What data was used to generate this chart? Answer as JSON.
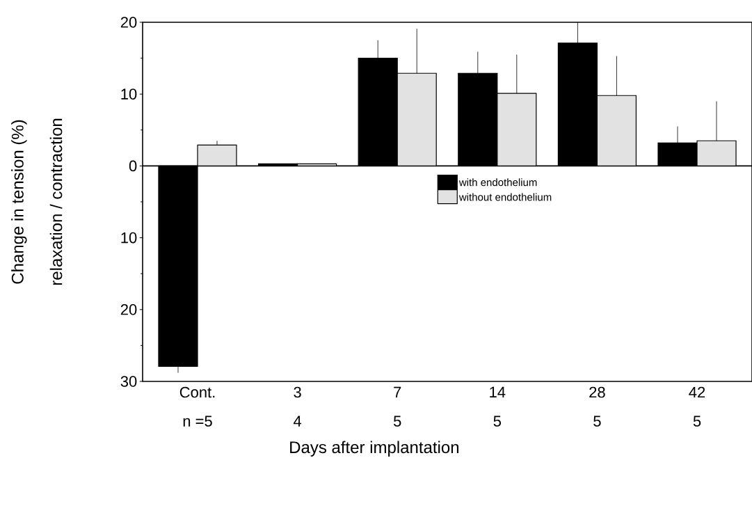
{
  "chart_data": {
    "type": "bar",
    "categories": [
      "Cont.",
      "3",
      "7",
      "14",
      "28",
      "42"
    ],
    "xlabel": "Days after implantation",
    "ylabel": "relaxation / contraction",
    "ylim": [
      -30,
      20
    ],
    "yticks": [
      {
        "value": -30,
        "label": "30"
      },
      {
        "value": -20,
        "label": "20"
      },
      {
        "value": -10,
        "label": "10"
      },
      0,
      10,
      20
    ],
    "series": [
      {
        "name": "with endothelium",
        "color": "#000000",
        "values": [
          -27.9,
          0.3,
          15.0,
          12.9,
          17.1,
          3.2
        ],
        "errors": [
          [
            -28.8,
            -27.9
          ],
          null,
          [
            15.0,
            17.5
          ],
          [
            12.9,
            15.9
          ],
          [
            17.1,
            20
          ],
          [
            3.2,
            5.5
          ]
        ]
      },
      {
        "name": "without endothelium",
        "color": "#e2e2e2",
        "values": [
          2.9,
          0.3,
          12.9,
          10.1,
          9.8,
          3.5
        ],
        "errors": [
          [
            2.9,
            3.5
          ],
          null,
          [
            12.9,
            19.1
          ],
          [
            10.1,
            15.5
          ],
          [
            9.8,
            15.3
          ],
          [
            3.5,
            9.0
          ]
        ]
      }
    ],
    "annotations": [
      "Change in tension (%)",
      "n =5",
      "4",
      "5",
      "5",
      "5",
      "5"
    ],
    "legend": "center"
  }
}
